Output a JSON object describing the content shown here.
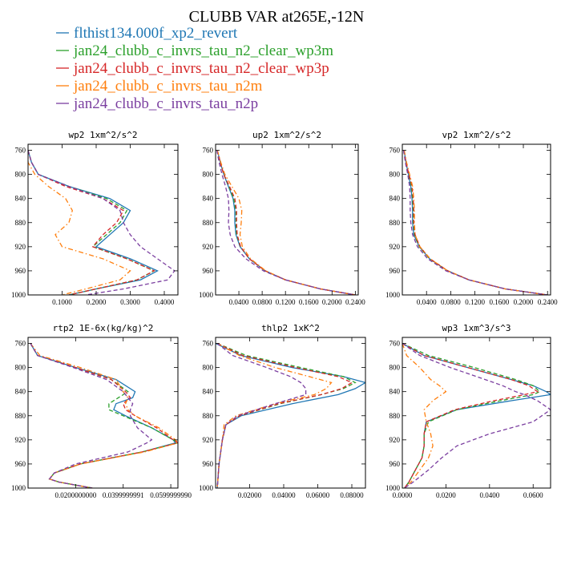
{
  "figure_title": "CLUBB VAR at265E,-12N",
  "series": [
    {
      "name": "flthist134.000f_xp2_revert",
      "color": "#1f77b4",
      "dash": "solid"
    },
    {
      "name": "jan24_clubb_c_invrs_tau_n2_clear_wp3m",
      "color": "#2ca02c",
      "dash": "dash"
    },
    {
      "name": "jan24_clubb_c_invrs_tau_n2_clear_wp3p",
      "color": "#d62728",
      "dash": "dash"
    },
    {
      "name": "jan24_clubb_c_invrs_tau_n2m",
      "color": "#ff7f0e",
      "dash": "dashdot"
    },
    {
      "name": "jan24_clubb_c_invrs_tau_n2p",
      "color": "#7b3fa0",
      "dash": "dash"
    }
  ],
  "chart_data": [
    {
      "type": "line",
      "title": "wp2  1xm^2/s^2",
      "xlim": [
        0,
        0.44
      ],
      "ylim": [
        1000,
        750
      ],
      "xticks": [
        0.1,
        0.2,
        0.3,
        0.4
      ],
      "xtick_labels": [
        "0.1000",
        "0.2000",
        "0.3000",
        "0.4000"
      ],
      "yticks": [
        760,
        800,
        840,
        880,
        920,
        960,
        1000
      ],
      "ytick_labels": [
        "760",
        "800",
        "840",
        "880",
        "920",
        "960",
        "1000"
      ],
      "y": [
        760,
        780,
        800,
        820,
        840,
        860,
        880,
        900,
        920,
        940,
        960,
        975,
        990,
        1000
      ],
      "series": [
        {
          "name": "flthist134.000f_xp2_revert",
          "values": [
            0.0,
            0.01,
            0.03,
            0.12,
            0.24,
            0.3,
            0.28,
            0.24,
            0.2,
            0.3,
            0.38,
            0.33,
            0.2,
            0.12
          ]
        },
        {
          "name": "jan24_clubb_c_invrs_tau_n2_clear_wp3m",
          "values": [
            0.0,
            0.01,
            0.03,
            0.12,
            0.23,
            0.29,
            0.27,
            0.23,
            0.19,
            0.29,
            0.37,
            0.32,
            0.2,
            0.12
          ]
        },
        {
          "name": "jan24_clubb_c_invrs_tau_n2_clear_wp3p",
          "values": [
            0.0,
            0.01,
            0.03,
            0.11,
            0.22,
            0.28,
            0.26,
            0.22,
            0.19,
            0.29,
            0.37,
            0.32,
            0.2,
            0.12
          ]
        },
        {
          "name": "jan24_clubb_c_invrs_tau_n2m",
          "values": [
            0.0,
            0.0,
            0.02,
            0.06,
            0.11,
            0.13,
            0.12,
            0.08,
            0.1,
            0.22,
            0.3,
            0.27,
            0.17,
            0.1
          ]
        },
        {
          "name": "jan24_clubb_c_invrs_tau_n2p",
          "values": [
            0.0,
            0.01,
            0.03,
            0.12,
            0.22,
            0.27,
            0.28,
            0.3,
            0.33,
            0.38,
            0.43,
            0.41,
            0.28,
            0.17
          ]
        }
      ]
    },
    {
      "type": "line",
      "title": "up2  1xm^2/s^2",
      "xlim": [
        0,
        0.245
      ],
      "ylim": [
        1000,
        750
      ],
      "xticks": [
        0.04,
        0.08,
        0.12,
        0.16,
        0.2,
        0.24
      ],
      "xtick_labels": [
        "0.0400",
        "0.0800",
        "0.1200",
        "0.1600",
        "0.2000",
        "0.2400"
      ],
      "yticks": [
        760,
        800,
        840,
        880,
        920,
        960,
        1000
      ],
      "ytick_labels": [
        "760",
        "800",
        "840",
        "880",
        "920",
        "960",
        "1000"
      ],
      "y": [
        760,
        780,
        800,
        820,
        840,
        860,
        880,
        900,
        920,
        940,
        960,
        975,
        990,
        1000
      ],
      "series": [
        {
          "name": "flthist134.000f_xp2_revert",
          "values": [
            0.003,
            0.008,
            0.014,
            0.022,
            0.03,
            0.033,
            0.033,
            0.035,
            0.042,
            0.058,
            0.085,
            0.12,
            0.18,
            0.24
          ]
        },
        {
          "name": "jan24_clubb_c_invrs_tau_n2_clear_wp3m",
          "values": [
            0.003,
            0.008,
            0.014,
            0.023,
            0.031,
            0.035,
            0.035,
            0.036,
            0.043,
            0.058,
            0.085,
            0.12,
            0.18,
            0.24
          ]
        },
        {
          "name": "jan24_clubb_c_invrs_tau_n2_clear_wp3p",
          "values": [
            0.003,
            0.008,
            0.014,
            0.024,
            0.033,
            0.036,
            0.036,
            0.037,
            0.043,
            0.058,
            0.085,
            0.12,
            0.18,
            0.24
          ]
        },
        {
          "name": "jan24_clubb_c_invrs_tau_n2m",
          "values": [
            0.003,
            0.009,
            0.016,
            0.028,
            0.04,
            0.045,
            0.044,
            0.042,
            0.046,
            0.06,
            0.086,
            0.12,
            0.18,
            0.24
          ]
        },
        {
          "name": "jan24_clubb_c_invrs_tau_n2p",
          "values": [
            0.002,
            0.006,
            0.011,
            0.017,
            0.022,
            0.023,
            0.022,
            0.025,
            0.033,
            0.052,
            0.082,
            0.12,
            0.18,
            0.24
          ]
        }
      ]
    },
    {
      "type": "line",
      "title": "vp2  1xm^2/s^2",
      "xlim": [
        0,
        0.245
      ],
      "ylim": [
        1000,
        750
      ],
      "xticks": [
        0.04,
        0.08,
        0.12,
        0.16,
        0.2,
        0.24
      ],
      "xtick_labels": [
        "0.0400",
        "0.0800",
        "0.1200",
        "0.1600",
        "0.2000",
        "0.2400"
      ],
      "yticks": [
        760,
        800,
        840,
        880,
        920,
        960,
        1000
      ],
      "ytick_labels": [
        "760",
        "800",
        "840",
        "880",
        "920",
        "960",
        "1000"
      ],
      "y": [
        760,
        780,
        800,
        820,
        840,
        860,
        880,
        900,
        920,
        940,
        960,
        975,
        990,
        1000
      ],
      "series": [
        {
          "name": "flthist134.000f_xp2_revert",
          "values": [
            0.003,
            0.006,
            0.01,
            0.014,
            0.016,
            0.017,
            0.017,
            0.019,
            0.028,
            0.045,
            0.075,
            0.11,
            0.17,
            0.24
          ]
        },
        {
          "name": "jan24_clubb_c_invrs_tau_n2_clear_wp3m",
          "values": [
            0.003,
            0.006,
            0.01,
            0.015,
            0.017,
            0.018,
            0.018,
            0.02,
            0.028,
            0.045,
            0.075,
            0.11,
            0.17,
            0.24
          ]
        },
        {
          "name": "jan24_clubb_c_invrs_tau_n2_clear_wp3p",
          "values": [
            0.003,
            0.006,
            0.011,
            0.016,
            0.018,
            0.019,
            0.019,
            0.021,
            0.029,
            0.046,
            0.075,
            0.11,
            0.17,
            0.24
          ]
        },
        {
          "name": "jan24_clubb_c_invrs_tau_n2m",
          "values": [
            0.003,
            0.007,
            0.012,
            0.017,
            0.019,
            0.02,
            0.02,
            0.021,
            0.029,
            0.046,
            0.075,
            0.11,
            0.17,
            0.24
          ]
        },
        {
          "name": "jan24_clubb_c_invrs_tau_n2p",
          "values": [
            0.002,
            0.005,
            0.009,
            0.012,
            0.013,
            0.013,
            0.014,
            0.017,
            0.025,
            0.042,
            0.072,
            0.11,
            0.17,
            0.24
          ]
        }
      ]
    },
    {
      "type": "line",
      "title": "rtp2  1E-6x(kg/kg)^2",
      "xlim": [
        0,
        0.063
      ],
      "ylim": [
        1000,
        750
      ],
      "xticks": [
        0.02,
        0.04,
        0.06
      ],
      "xtick_labels": [
        "0.0200000000",
        "0.0399999991",
        "0.0599999990"
      ],
      "yticks": [
        760,
        800,
        840,
        880,
        920,
        960,
        1000
      ],
      "ytick_labels": [
        "760",
        "800",
        "840",
        "880",
        "920",
        "960",
        "1000"
      ],
      "y": [
        760,
        780,
        800,
        820,
        840,
        850,
        860,
        870,
        880,
        900,
        920,
        925,
        940,
        960,
        975,
        985,
        990,
        1000
      ],
      "series": [
        {
          "name": "flthist134.000f_xp2_revert",
          "values": [
            0.001,
            0.004,
            0.02,
            0.037,
            0.045,
            0.044,
            0.037,
            0.036,
            0.041,
            0.052,
            0.061,
            0.062,
            0.048,
            0.022,
            0.011,
            0.009,
            0.013,
            0.027
          ]
        },
        {
          "name": "jan24_clubb_c_invrs_tau_n2_clear_wp3m",
          "values": [
            0.001,
            0.004,
            0.02,
            0.035,
            0.042,
            0.038,
            0.034,
            0.034,
            0.04,
            0.052,
            0.061,
            0.063,
            0.048,
            0.022,
            0.011,
            0.009,
            0.013,
            0.027
          ]
        },
        {
          "name": "jan24_clubb_c_invrs_tau_n2_clear_wp3p",
          "values": [
            0.001,
            0.004,
            0.02,
            0.035,
            0.041,
            0.043,
            0.04,
            0.041,
            0.045,
            0.054,
            0.061,
            0.063,
            0.048,
            0.022,
            0.011,
            0.009,
            0.013,
            0.027
          ]
        },
        {
          "name": "jan24_clubb_c_invrs_tau_n2m",
          "values": [
            0.001,
            0.005,
            0.022,
            0.037,
            0.04,
            0.042,
            0.041,
            0.042,
            0.045,
            0.055,
            0.062,
            0.063,
            0.049,
            0.022,
            0.011,
            0.009,
            0.013,
            0.027
          ]
        },
        {
          "name": "jan24_clubb_c_invrs_tau_n2p",
          "values": [
            0.001,
            0.004,
            0.019,
            0.033,
            0.04,
            0.042,
            0.044,
            0.043,
            0.043,
            0.046,
            0.052,
            0.05,
            0.042,
            0.02,
            0.011,
            0.009,
            0.013,
            0.027
          ]
        }
      ]
    },
    {
      "type": "line",
      "title": "thlp2  1xK^2",
      "xlim": [
        0,
        0.088
      ],
      "ylim": [
        1000,
        750
      ],
      "xticks": [
        0.02,
        0.04,
        0.06,
        0.08
      ],
      "xtick_labels": [
        "0.02000",
        "0.04000",
        "0.06000",
        "0.08000"
      ],
      "yticks": [
        760,
        800,
        840,
        880,
        920,
        960,
        1000
      ],
      "ytick_labels": [
        "760",
        "800",
        "840",
        "880",
        "920",
        "960",
        "1000"
      ],
      "y": [
        760,
        780,
        800,
        815,
        825,
        835,
        845,
        860,
        880,
        895,
        920,
        960,
        1000
      ],
      "series": [
        {
          "name": "flthist134.000f_xp2_revert",
          "values": [
            0.0,
            0.015,
            0.045,
            0.075,
            0.088,
            0.082,
            0.072,
            0.045,
            0.015,
            0.006,
            0.004,
            0.002,
            0.001
          ]
        },
        {
          "name": "jan24_clubb_c_invrs_tau_n2_clear_wp3m",
          "values": [
            0.001,
            0.018,
            0.05,
            0.075,
            0.082,
            0.075,
            0.062,
            0.038,
            0.014,
            0.006,
            0.004,
            0.002,
            0.001
          ]
        },
        {
          "name": "jan24_clubb_c_invrs_tau_n2_clear_wp3p",
          "values": [
            0.001,
            0.016,
            0.047,
            0.072,
            0.08,
            0.074,
            0.062,
            0.037,
            0.014,
            0.006,
            0.004,
            0.002,
            0.001
          ]
        },
        {
          "name": "jan24_clubb_c_invrs_tau_n2m",
          "values": [
            0.001,
            0.014,
            0.035,
            0.055,
            0.068,
            0.065,
            0.058,
            0.035,
            0.012,
            0.005,
            0.004,
            0.002,
            0.001
          ]
        },
        {
          "name": "jan24_clubb_c_invrs_tau_n2p",
          "values": [
            0.001,
            0.01,
            0.03,
            0.044,
            0.05,
            0.053,
            0.053,
            0.035,
            0.013,
            0.006,
            0.004,
            0.002,
            0.001
          ]
        }
      ]
    },
    {
      "type": "line",
      "title": "wp3  1xm^3/s^3",
      "xlim": [
        0,
        0.068
      ],
      "ylim": [
        1000,
        750
      ],
      "xticks": [
        0,
        0.02,
        0.04,
        0.06
      ],
      "xtick_labels": [
        "0.0000",
        "0.0200",
        "0.0400",
        "0.0600"
      ],
      "yticks": [
        760,
        800,
        840,
        880,
        920,
        960,
        1000
      ],
      "ytick_labels": [
        "760",
        "800",
        "840",
        "880",
        "920",
        "960",
        "1000"
      ],
      "y": [
        760,
        780,
        800,
        820,
        830,
        840,
        845,
        855,
        870,
        890,
        910,
        930,
        950,
        970,
        990,
        1000
      ],
      "series": [
        {
          "name": "flthist134.000f_xp2_revert",
          "values": [
            0.0,
            0.01,
            0.03,
            0.05,
            0.06,
            0.066,
            0.068,
            0.05,
            0.025,
            0.011,
            0.01,
            0.01,
            0.009,
            0.006,
            0.003,
            0.001
          ]
        },
        {
          "name": "jan24_clubb_c_invrs_tau_n2_clear_wp3m",
          "values": [
            0.0,
            0.012,
            0.033,
            0.052,
            0.06,
            0.063,
            0.06,
            0.045,
            0.025,
            0.012,
            0.01,
            0.01,
            0.009,
            0.006,
            0.003,
            0.001
          ]
        },
        {
          "name": "jan24_clubb_c_invrs_tau_n2_clear_wp3p",
          "values": [
            0.0,
            0.01,
            0.03,
            0.05,
            0.058,
            0.062,
            0.056,
            0.042,
            0.024,
            0.011,
            0.01,
            0.01,
            0.009,
            0.006,
            0.003,
            0.001
          ]
        },
        {
          "name": "jan24_clubb_c_invrs_tau_n2m",
          "values": [
            0.0,
            0.002,
            0.008,
            0.013,
            0.017,
            0.02,
            0.018,
            0.014,
            0.01,
            0.011,
            0.013,
            0.014,
            0.012,
            0.008,
            0.004,
            0.001
          ]
        },
        {
          "name": "jan24_clubb_c_invrs_tau_n2p",
          "values": [
            0.0,
            0.008,
            0.022,
            0.038,
            0.046,
            0.052,
            0.056,
            0.062,
            0.068,
            0.06,
            0.04,
            0.025,
            0.018,
            0.012,
            0.005,
            0.001
          ]
        }
      ]
    }
  ]
}
